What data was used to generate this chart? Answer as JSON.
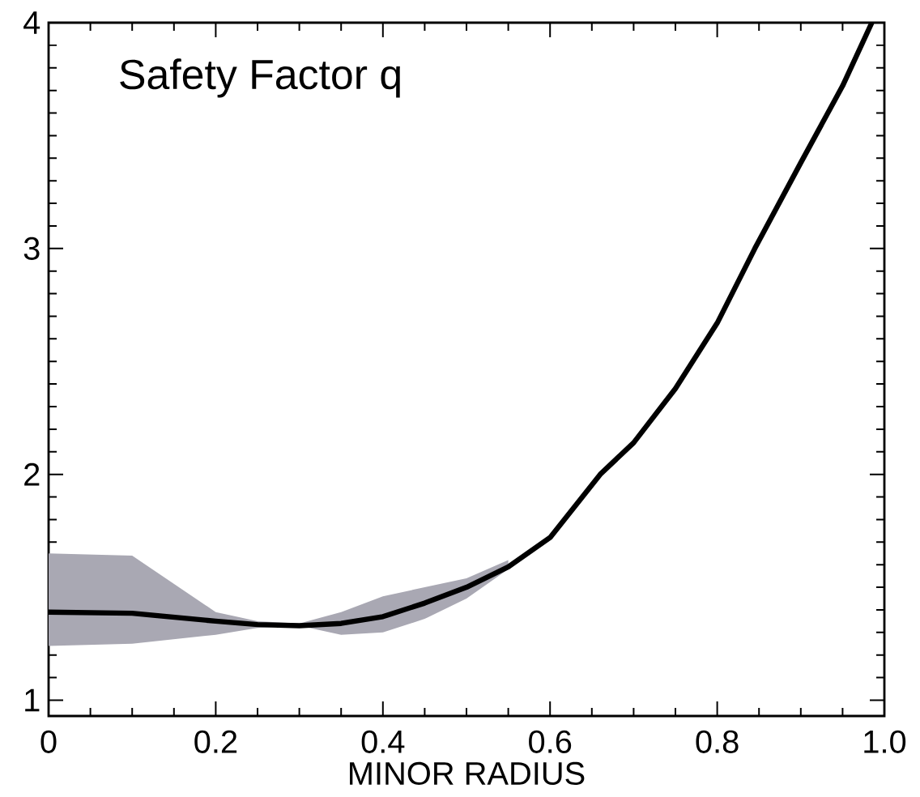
{
  "chart_data": {
    "type": "line",
    "title": "Safety Factor q",
    "xlabel": "MINOR RADIUS",
    "xlim": [
      0,
      1
    ],
    "xticks": [
      0,
      0.2,
      0.4,
      0.6,
      0.8,
      {
        "value": 1,
        "label": "1.0"
      }
    ],
    "ylim": [
      0.93,
      4
    ],
    "yticks": [
      1,
      2,
      3,
      4
    ],
    "grid": false,
    "marker": "none",
    "line_style": "solid",
    "series": [
      {
        "color": "#000000",
        "x": [
          0,
          0.1,
          0.2,
          0.25,
          0.3,
          0.35,
          0.4,
          0.45,
          0.5,
          0.55,
          0.6,
          0.66,
          0.7,
          0.75,
          0.8,
          0.845,
          0.9,
          0.95,
          0.985
        ],
        "values": [
          1.39,
          1.385,
          1.35,
          1.335,
          1.33,
          1.34,
          1.37,
          1.43,
          1.5,
          1.59,
          1.72,
          2.0,
          2.14,
          2.38,
          2.67,
          3.0,
          3.38,
          3.72,
          4.0
        ],
        "upper": [
          1.65,
          1.64,
          1.39,
          1.35,
          1.34,
          1.39,
          1.46,
          1.5,
          1.54,
          1.62,
          null,
          null,
          null,
          null,
          null,
          null,
          null,
          null,
          null
        ],
        "lower": [
          1.24,
          1.25,
          1.29,
          1.32,
          1.33,
          1.29,
          1.3,
          1.36,
          1.45,
          1.58,
          null,
          null,
          null,
          null,
          null,
          null,
          null,
          null,
          null
        ]
      }
    ]
  }
}
